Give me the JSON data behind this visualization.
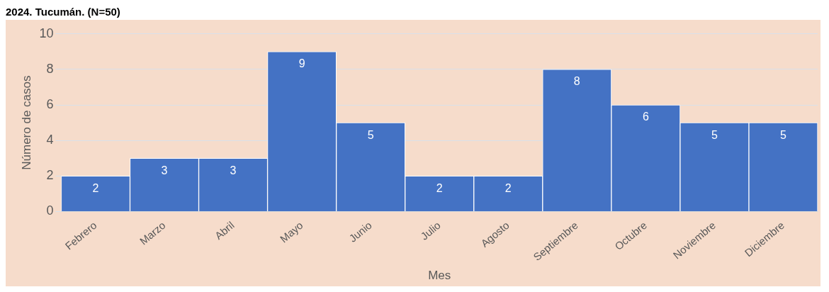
{
  "chart_data": {
    "type": "bar",
    "title": "2024. Tucumán. (N=50)",
    "xlabel": "Mes",
    "ylabel": "Número de casos",
    "categories": [
      "Febrero",
      "Marzo",
      "Abril",
      "Mayo",
      "Junio",
      "Julio",
      "Agosto",
      "Septiembre",
      "Octubre",
      "Noviembre",
      "Diciembre"
    ],
    "values": [
      2,
      3,
      3,
      9,
      5,
      2,
      2,
      8,
      6,
      5,
      5
    ],
    "color": "#4472c4",
    "ylim": [
      0,
      10
    ],
    "yticks": [
      0,
      2,
      4,
      6,
      8,
      10
    ],
    "grid": "y",
    "data_labels": true,
    "legend": false
  }
}
